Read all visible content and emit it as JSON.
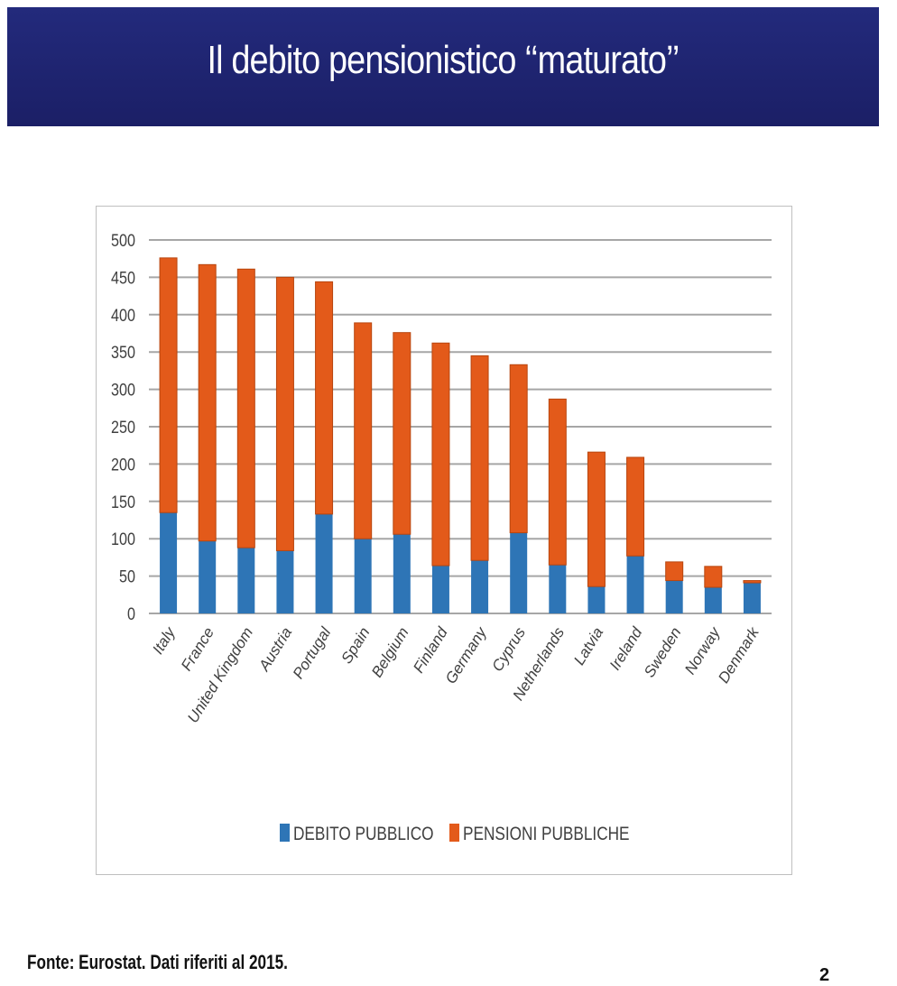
{
  "slide": {
    "title": "Il debito pensionistico ‘‘maturato’’",
    "footer": "Fonte: Eurostat. Dati riferiti al 2015.",
    "page_number": "2"
  },
  "colors": {
    "header": "#1f2470",
    "debito": "#2e75b6",
    "pensioni": "#e35a1a",
    "grid": "#a6a6a6"
  },
  "chart_data": {
    "type": "bar",
    "stacked": true,
    "title": "",
    "xlabel": "",
    "ylabel": "",
    "ylim": [
      0,
      500
    ],
    "yticks": [
      0,
      50,
      100,
      150,
      200,
      250,
      300,
      350,
      400,
      450,
      500
    ],
    "grid": true,
    "legend_position": "bottom",
    "categories": [
      "Italy",
      "France",
      "United Kingdom",
      "Austria",
      "Portugal",
      "Spain",
      "Belgium",
      "Finland",
      "Germany",
      "Cyprus",
      "Netherlands",
      "Latvia",
      "Ireland",
      "Sweden",
      "Norway",
      "Denmark"
    ],
    "series": [
      {
        "name": "DEBITO PUBBLICO",
        "values": [
          135,
          97,
          88,
          84,
          133,
          100,
          106,
          64,
          71,
          108,
          65,
          36,
          77,
          44,
          35,
          41
        ]
      },
      {
        "name": "PENSIONI PUBBLICHE",
        "values": [
          341,
          370,
          373,
          366,
          311,
          289,
          270,
          298,
          274,
          225,
          222,
          180,
          132,
          25,
          28,
          3
        ]
      }
    ]
  }
}
